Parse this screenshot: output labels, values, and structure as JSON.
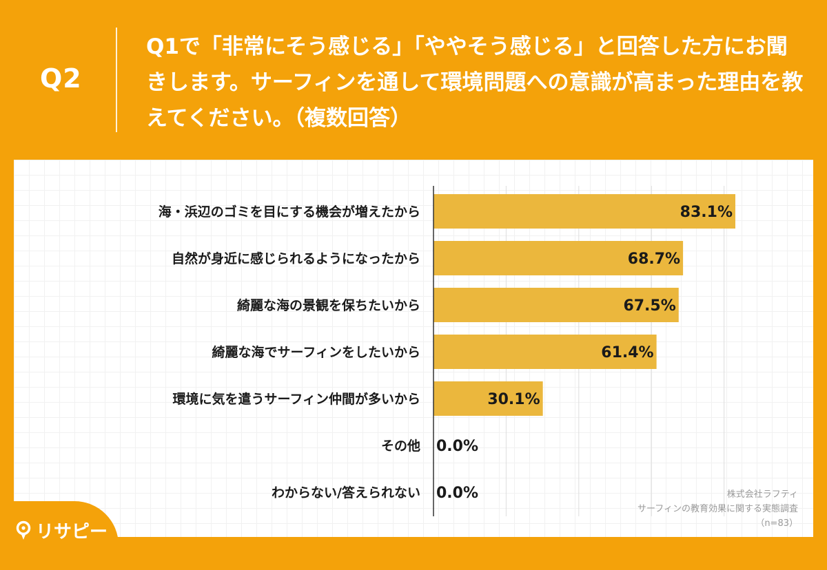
{
  "header": {
    "q_label": "Q2",
    "question": "Q1で「非常にそう感じる」「ややそう感じる」と回答した方にお聞きします。サーフィンを通して環境問題への意識が高まった理由を教えてください。（複数回答）"
  },
  "colors": {
    "background": "#F4A20A",
    "bar": "#EBB73D",
    "text": "#1a1a1a"
  },
  "chart_data": {
    "type": "bar",
    "orientation": "horizontal",
    "categories": [
      "海・浜辺のゴミを目にする機会が増えたから",
      "自然が身近に感じられるようになったから",
      "綺麗な海の景観を保ちたいから",
      "綺麗な海でサーフィンをしたいから",
      "環境に気を遣うサーフィン仲間が多いから",
      "その他",
      "わからない/答えられない"
    ],
    "values": [
      83.1,
      68.7,
      67.5,
      61.4,
      30.1,
      0.0,
      0.0
    ],
    "value_labels": [
      "83.1%",
      "68.7%",
      "67.5%",
      "61.4%",
      "30.1%",
      "0.0%",
      "0.0%"
    ],
    "xlim": [
      0,
      90
    ],
    "grid": true
  },
  "source": {
    "line1": "株式会社ラフティ",
    "line2": "サーフィンの教育効果に関する実態調査",
    "line3": "（n=83）"
  },
  "logo": {
    "text": "リサピー",
    "icon": "pin-icon"
  }
}
